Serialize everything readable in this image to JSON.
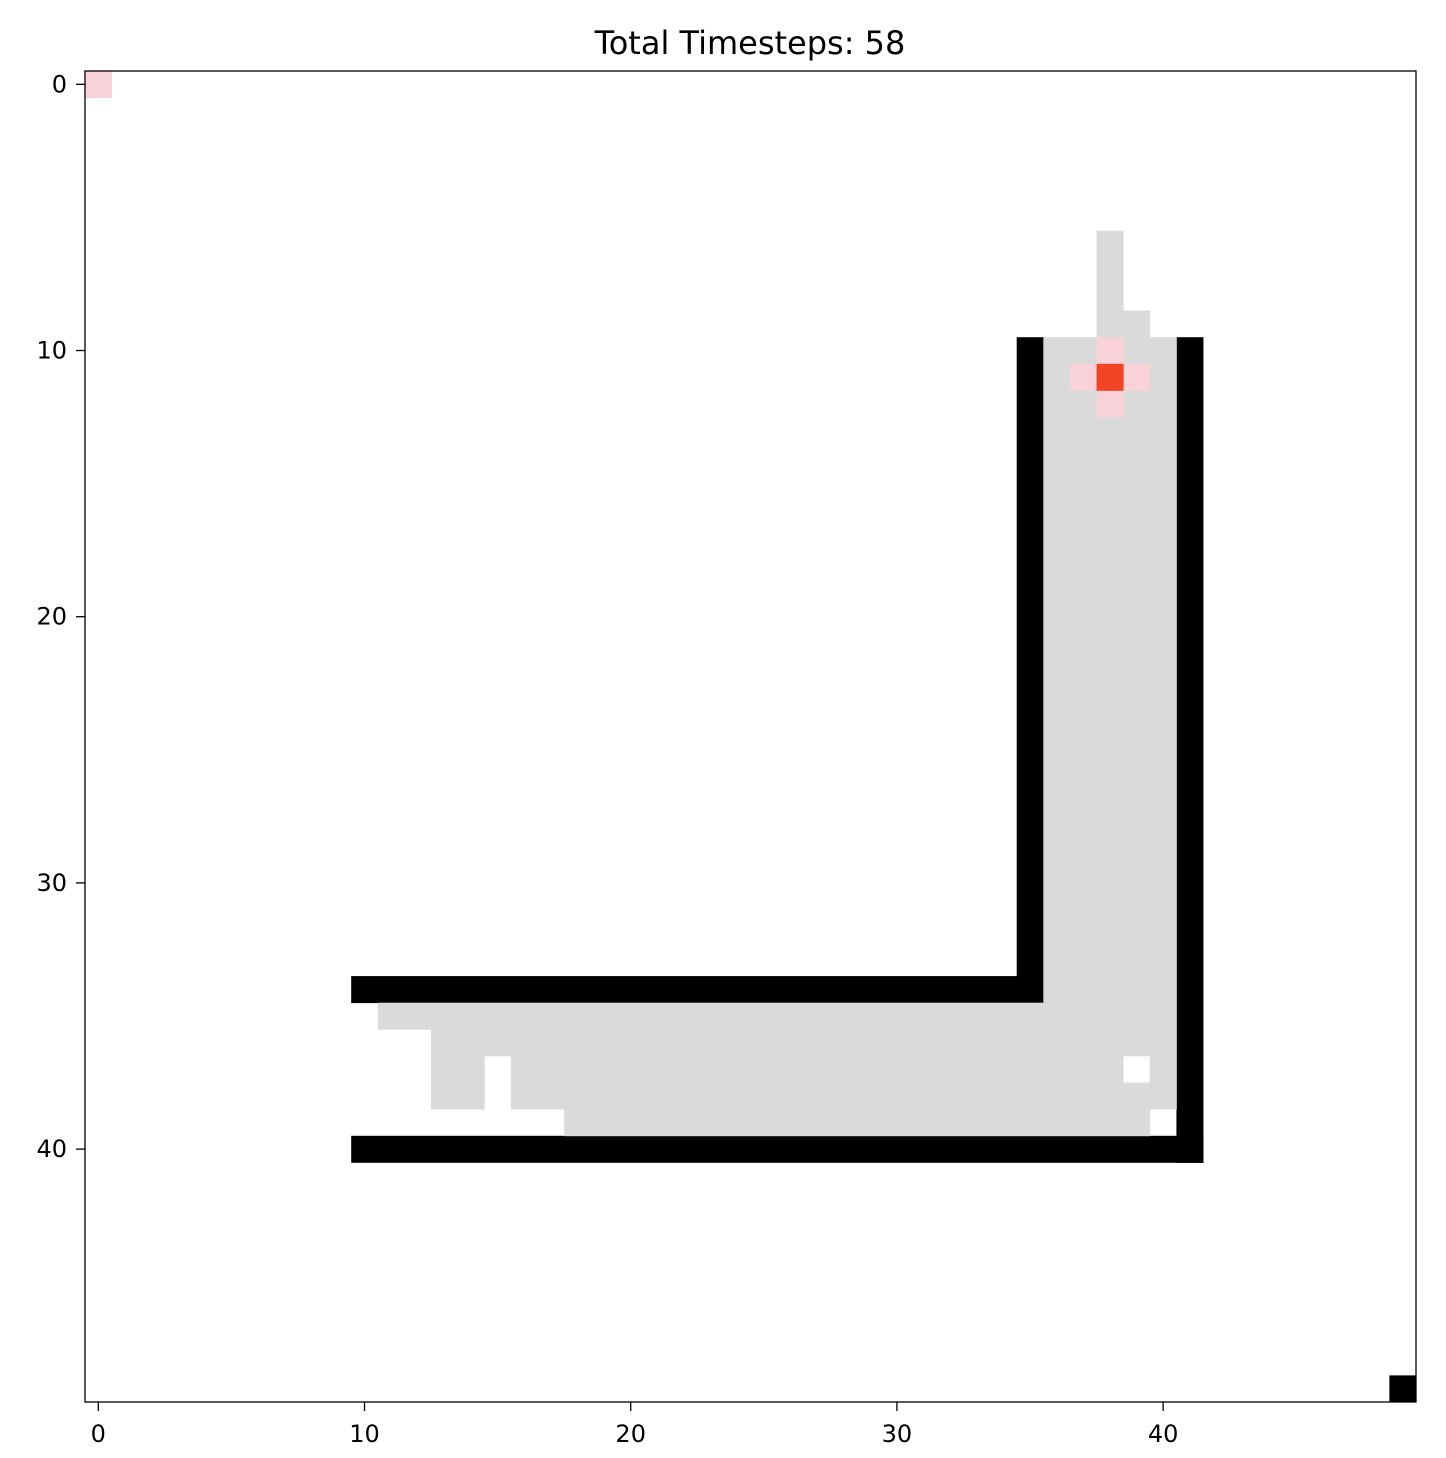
{
  "chart_data": {
    "type": "heatmap",
    "title": "Total Timesteps: 58",
    "grid_size": [
      50,
      50
    ],
    "x_ticks": [
      0,
      10,
      20,
      30,
      40
    ],
    "y_ticks": [
      0,
      10,
      20,
      30,
      40
    ],
    "xlim": [
      -0.5,
      49.5
    ],
    "ylim": [
      49.5,
      -0.5
    ],
    "grid": false,
    "colors": {
      "wall": "#000000",
      "visited": "#dadada",
      "agent": "#f04424",
      "agent_neighbor": "#f9d1d8",
      "background": "#ffffff"
    },
    "cells": [
      {
        "kind": "agent_neighbor",
        "rows": [
          0,
          0
        ],
        "cols": [
          0,
          0
        ]
      },
      {
        "kind": "wall",
        "rows": [
          49,
          49
        ],
        "cols": [
          49,
          49
        ]
      },
      {
        "kind": "wall",
        "rows": [
          10,
          34
        ],
        "cols": [
          35,
          35
        ]
      },
      {
        "kind": "wall",
        "rows": [
          10,
          40
        ],
        "cols": [
          41,
          41
        ]
      },
      {
        "kind": "wall",
        "rows": [
          34,
          34
        ],
        "cols": [
          10,
          35
        ]
      },
      {
        "kind": "wall",
        "rows": [
          40,
          40
        ],
        "cols": [
          10,
          41
        ]
      },
      {
        "kind": "visited",
        "rows": [
          6,
          9
        ],
        "cols": [
          38,
          38
        ]
      },
      {
        "kind": "visited",
        "rows": [
          9,
          9
        ],
        "cols": [
          39,
          39
        ]
      },
      {
        "kind": "visited",
        "rows": [
          10,
          34
        ],
        "cols": [
          36,
          40
        ]
      },
      {
        "kind": "visited",
        "rows": [
          35,
          35
        ],
        "cols": [
          11,
          40
        ]
      },
      {
        "kind": "visited",
        "rows": [
          36,
          36
        ],
        "cols": [
          13,
          40
        ]
      },
      {
        "kind": "visited",
        "rows": [
          37,
          37
        ],
        "cols": [
          13,
          14
        ]
      },
      {
        "kind": "visited",
        "rows": [
          37,
          37
        ],
        "cols": [
          16,
          17
        ]
      },
      {
        "kind": "visited",
        "rows": [
          37,
          37
        ],
        "cols": [
          18,
          19
        ]
      },
      {
        "kind": "visited",
        "rows": [
          37,
          37
        ],
        "cols": [
          20,
          38
        ]
      },
      {
        "kind": "visited",
        "rows": [
          37,
          37
        ],
        "cols": [
          40,
          40
        ]
      },
      {
        "kind": "visited",
        "rows": [
          38,
          38
        ],
        "cols": [
          13,
          14
        ]
      },
      {
        "kind": "visited",
        "rows": [
          38,
          38
        ],
        "cols": [
          16,
          40
        ]
      },
      {
        "kind": "visited",
        "rows": [
          39,
          39
        ],
        "cols": [
          18,
          39
        ]
      },
      {
        "kind": "agent_neighbor",
        "rows": [
          10,
          10
        ],
        "cols": [
          38,
          38
        ]
      },
      {
        "kind": "agent_neighbor",
        "rows": [
          11,
          11
        ],
        "cols": [
          37,
          37
        ]
      },
      {
        "kind": "agent_neighbor",
        "rows": [
          11,
          11
        ],
        "cols": [
          39,
          39
        ]
      },
      {
        "kind": "agent_neighbor",
        "rows": [
          12,
          12
        ],
        "cols": [
          38,
          38
        ]
      },
      {
        "kind": "agent",
        "rows": [
          11,
          11
        ],
        "cols": [
          38,
          38
        ]
      }
    ]
  }
}
